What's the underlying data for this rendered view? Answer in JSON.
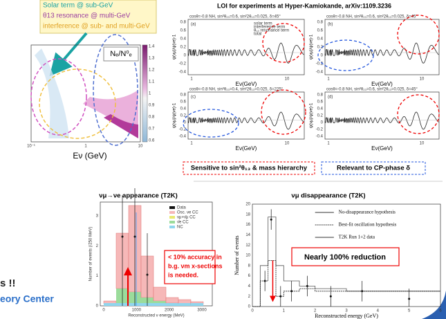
{
  "legend_box": {
    "lines": [
      "Solar term @ sub-GeV",
      "θ13 resonance @ multi-GeV",
      "interference @ sub- and multi-GeV"
    ]
  },
  "triangle_plot": {
    "label": "Nₑ/N⁰ₑ",
    "xlabel": "Eν (GeV)",
    "colorbar_ticks": [
      "1.4",
      "1.3",
      "1.2",
      "1.1",
      "1",
      "0.9",
      "0.8",
      "0.7",
      "0.6"
    ],
    "xticks": [
      "10⁻¹",
      "1",
      "10"
    ]
  },
  "reference": "LOI for experiments at Hyper-Kamiokande, arXiv:1109.3236",
  "panels": {
    "ylabel": "ψ(νμ)/ψ(νe)-1",
    "xlabel": "Eν(GeV)",
    "yticks": [
      "0.8",
      "0.6",
      "0.4",
      "0.2",
      "0",
      "-0.2",
      "-0.4"
    ],
    "xticks": [
      "1",
      "10"
    ],
    "items": [
      {
        "letter": "(a)",
        "header": "cosθ=-0.8   NH, sin²θ₂₃=0.6, sin²2θ₁₃=0.025, δ=45°"
      },
      {
        "letter": "(b)",
        "header": "cosθ=-0.8   NH, sin²θ₂₃=0.6, sin²2θ₁₃=0.025, δ=45°"
      },
      {
        "letter": "(c)",
        "header": "cosθ=-0.8   NH, sin²θ₂₃=0.4, sin²2θ₁₃=0.025, δ=225°"
      },
      {
        "letter": "(d)",
        "header": "cosθ=-0.8   NH, sin²θ₂₃=0.6, sin²2θ₁₃=0.025, δ=45°"
      }
    ],
    "legend": [
      "solar term",
      "interference term",
      "θ₁₃ resonance term",
      "total"
    ]
  },
  "notes": {
    "hierarchy": "Sensitive to sin²θ₁₃ & mass hierarchy",
    "cp": "Relevant to CP-phase δ"
  },
  "appearance": {
    "title": "νμ→νe appearance (T2K)",
    "ylabel": "Number of events (/250 MeV)",
    "xlabel": "Reconstructed ν energy (MeV)",
    "yticks": [
      "0",
      "1",
      "2",
      "3"
    ],
    "xticks": [
      "0",
      "1000",
      "2000",
      "3000"
    ],
    "legend": [
      "Data",
      "Osc. νe CC",
      "νμ+ν̄μ CC",
      "ν̄e CC",
      "NC"
    ],
    "callout": [
      "< 10% accuracy in",
      "b.g. νm x-sections",
      "is needed."
    ]
  },
  "disappearance": {
    "title": "νμ disappearance (T2K)",
    "ylabel": "Number of events",
    "xlabel": "Reconstructed energy (GeV)",
    "yticks": [
      "0",
      "2",
      "4",
      "6",
      "8",
      "10",
      "12",
      "14",
      "16",
      "18",
      "20"
    ],
    "xticks": [
      "0",
      "1",
      "2",
      "3",
      "4",
      "5",
      "6"
    ],
    "legend": [
      "No-disappearance hypothesis",
      "Best-fit oscillation hypothesis",
      "T2K Run 1+2 data"
    ],
    "callout": "Nearly 100% reduction"
  },
  "left_text": {
    "line1": "s !!",
    "line2": "eory Center"
  }
}
